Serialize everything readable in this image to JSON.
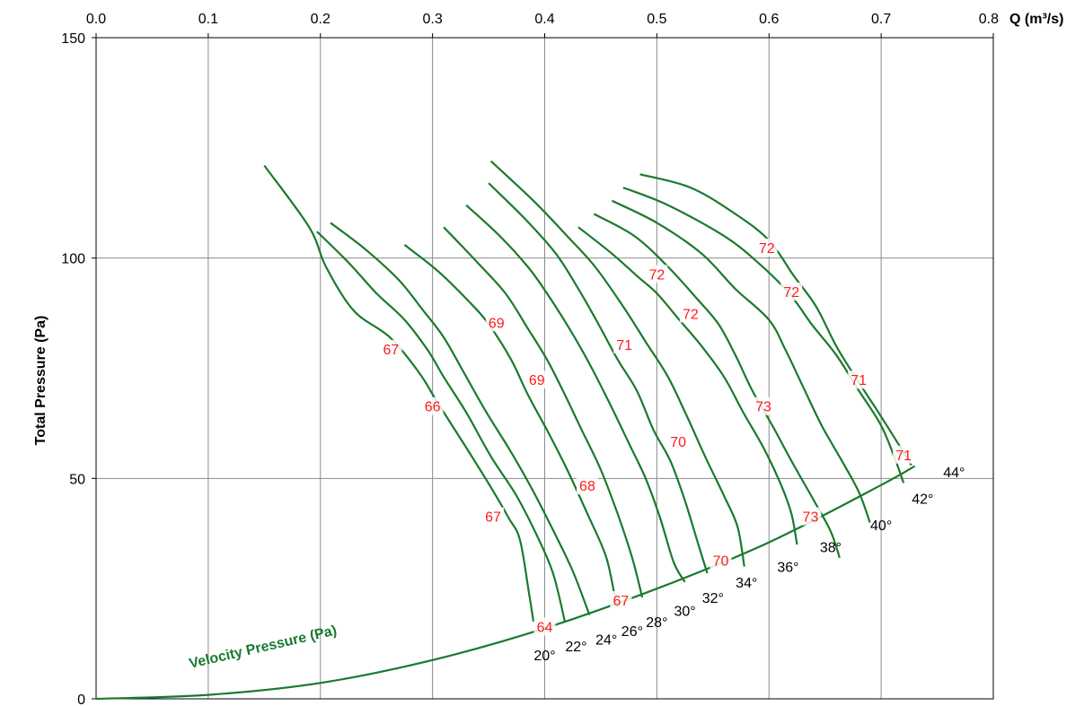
{
  "chart_data": {
    "type": "line",
    "xlabel": "Q (m³/s)",
    "ylabel": "Total Pressure (Pa)",
    "xlim": [
      0,
      0.8
    ],
    "ylim": [
      0,
      150
    ],
    "x_ticks": [
      "0.0",
      "0.1",
      "0.2",
      "0.3",
      "0.4",
      "0.5",
      "0.6",
      "0.7",
      "0.8"
    ],
    "y_ticks": [
      "0",
      "50",
      "100",
      "150"
    ],
    "grid": true,
    "x_axis_position": "top",
    "line_color": "#1a7a2e",
    "efficiency_label_color": "#ff1a1a",
    "velocity_pressure": {
      "name": "Velocity Pressure (Pa)",
      "points": [
        [
          0,
          0
        ],
        [
          0.1,
          0.9
        ],
        [
          0.2,
          3.6
        ],
        [
          0.3,
          8.8
        ],
        [
          0.4,
          16.0
        ],
        [
          0.5,
          25.0
        ],
        [
          0.6,
          35.5
        ],
        [
          0.7,
          48.5
        ],
        [
          0.73,
          52.8
        ]
      ]
    },
    "series": [
      {
        "name": "20°",
        "points": [
          [
            0.15,
            121
          ],
          [
            0.19,
            107
          ],
          [
            0.205,
            98
          ],
          [
            0.23,
            88
          ],
          [
            0.262,
            82
          ],
          [
            0.288,
            74
          ],
          [
            0.305,
            67
          ],
          [
            0.33,
            57
          ],
          [
            0.352,
            48
          ],
          [
            0.368,
            41
          ],
          [
            0.378,
            36
          ],
          [
            0.386,
            24
          ],
          [
            0.39,
            17.5
          ]
        ]
      },
      {
        "name": "22°",
        "points": [
          [
            0.197,
            106
          ],
          [
            0.225,
            99
          ],
          [
            0.25,
            92
          ],
          [
            0.275,
            86
          ],
          [
            0.296,
            79
          ],
          [
            0.31,
            73
          ],
          [
            0.33,
            65
          ],
          [
            0.352,
            55
          ],
          [
            0.375,
            46
          ],
          [
            0.395,
            36
          ],
          [
            0.408,
            28
          ],
          [
            0.418,
            17.5
          ]
        ]
      },
      {
        "name": "24°",
        "points": [
          [
            0.209,
            108
          ],
          [
            0.24,
            102
          ],
          [
            0.27,
            95
          ],
          [
            0.292,
            88
          ],
          [
            0.31,
            82
          ],
          [
            0.328,
            74
          ],
          [
            0.348,
            65
          ],
          [
            0.37,
            56
          ],
          [
            0.39,
            47
          ],
          [
            0.408,
            38
          ],
          [
            0.425,
            29
          ],
          [
            0.44,
            19
          ]
        ]
      },
      {
        "name": "26°",
        "points": [
          [
            0.275,
            103
          ],
          [
            0.305,
            97
          ],
          [
            0.333,
            90
          ],
          [
            0.35,
            85
          ],
          [
            0.37,
            77
          ],
          [
            0.385,
            69
          ],
          [
            0.402,
            61
          ],
          [
            0.42,
            52
          ],
          [
            0.438,
            42
          ],
          [
            0.455,
            32
          ],
          [
            0.464,
            21
          ]
        ]
      },
      {
        "name": "28°",
        "points": [
          [
            0.31,
            107
          ],
          [
            0.34,
            99
          ],
          [
            0.365,
            92
          ],
          [
            0.385,
            84
          ],
          [
            0.402,
            77
          ],
          [
            0.418,
            69
          ],
          [
            0.433,
            61
          ],
          [
            0.45,
            52
          ],
          [
            0.465,
            42
          ],
          [
            0.478,
            32
          ],
          [
            0.487,
            23
          ]
        ]
      },
      {
        "name": "30°",
        "points": [
          [
            0.33,
            112
          ],
          [
            0.36,
            105
          ],
          [
            0.385,
            98
          ],
          [
            0.402,
            92
          ],
          [
            0.422,
            84
          ],
          [
            0.44,
            76
          ],
          [
            0.458,
            67
          ],
          [
            0.475,
            58
          ],
          [
            0.49,
            50
          ],
          [
            0.503,
            41
          ],
          [
            0.515,
            31
          ],
          [
            0.525,
            26.5
          ]
        ]
      },
      {
        "name": "32°",
        "points": [
          [
            0.35,
            117
          ],
          [
            0.382,
            109
          ],
          [
            0.41,
            101
          ],
          [
            0.43,
            93
          ],
          [
            0.448,
            85
          ],
          [
            0.465,
            77
          ],
          [
            0.482,
            70
          ],
          [
            0.497,
            61
          ],
          [
            0.512,
            54
          ],
          [
            0.525,
            45
          ],
          [
            0.537,
            35
          ],
          [
            0.545,
            28.5
          ]
        ]
      },
      {
        "name": "34°",
        "points": [
          [
            0.352,
            122
          ],
          [
            0.39,
            113
          ],
          [
            0.42,
            105
          ],
          [
            0.445,
            98
          ],
          [
            0.47,
            89
          ],
          [
            0.49,
            81
          ],
          [
            0.51,
            73
          ],
          [
            0.527,
            64
          ],
          [
            0.543,
            55
          ],
          [
            0.56,
            46
          ],
          [
            0.572,
            39
          ],
          [
            0.578,
            30
          ]
        ]
      },
      {
        "name": "36°",
        "points": [
          [
            0.43,
            107
          ],
          [
            0.46,
            101
          ],
          [
            0.482,
            96
          ],
          [
            0.5,
            92
          ],
          [
            0.52,
            86
          ],
          [
            0.54,
            80
          ],
          [
            0.56,
            73
          ],
          [
            0.577,
            65
          ],
          [
            0.595,
            57
          ],
          [
            0.61,
            49
          ],
          [
            0.62,
            42
          ],
          [
            0.625,
            35
          ]
        ]
      },
      {
        "name": "38°",
        "points": [
          [
            0.444,
            110
          ],
          [
            0.48,
            105
          ],
          [
            0.51,
            98
          ],
          [
            0.535,
            91
          ],
          [
            0.555,
            85
          ],
          [
            0.57,
            78
          ],
          [
            0.585,
            70
          ],
          [
            0.603,
            62
          ],
          [
            0.62,
            54
          ],
          [
            0.64,
            45
          ],
          [
            0.655,
            38
          ],
          [
            0.663,
            32
          ]
        ]
      },
      {
        "name": "40°",
        "points": [
          [
            0.46,
            113
          ],
          [
            0.5,
            108
          ],
          [
            0.54,
            101
          ],
          [
            0.57,
            93
          ],
          [
            0.6,
            86
          ],
          [
            0.615,
            79
          ],
          [
            0.63,
            71
          ],
          [
            0.647,
            62
          ],
          [
            0.665,
            54
          ],
          [
            0.68,
            47
          ],
          [
            0.69,
            40
          ]
        ]
      },
      {
        "name": "42°",
        "points": [
          [
            0.47,
            116
          ],
          [
            0.51,
            112
          ],
          [
            0.56,
            105
          ],
          [
            0.59,
            99
          ],
          [
            0.618,
            92
          ],
          [
            0.638,
            85
          ],
          [
            0.66,
            78
          ],
          [
            0.68,
            70
          ],
          [
            0.7,
            62
          ],
          [
            0.713,
            54
          ],
          [
            0.72,
            49
          ]
        ]
      },
      {
        "name": "44°",
        "points": [
          [
            0.485,
            119
          ],
          [
            0.53,
            116
          ],
          [
            0.57,
            110
          ],
          [
            0.6,
            104
          ],
          [
            0.622,
            96
          ],
          [
            0.642,
            89
          ],
          [
            0.66,
            80
          ],
          [
            0.677,
            73
          ],
          [
            0.695,
            66
          ],
          [
            0.71,
            60
          ],
          [
            0.727,
            53
          ]
        ]
      }
    ],
    "efficiency_labels": [
      {
        "text": "67",
        "x": 0.263,
        "y": 79
      },
      {
        "text": "66",
        "x": 0.3,
        "y": 66
      },
      {
        "text": "67",
        "x": 0.354,
        "y": 41
      },
      {
        "text": "64",
        "x": 0.4,
        "y": 16
      },
      {
        "text": "69",
        "x": 0.357,
        "y": 85
      },
      {
        "text": "69",
        "x": 0.393,
        "y": 72
      },
      {
        "text": "68",
        "x": 0.438,
        "y": 48
      },
      {
        "text": "67",
        "x": 0.468,
        "y": 22
      },
      {
        "text": "71",
        "x": 0.471,
        "y": 80
      },
      {
        "text": "70",
        "x": 0.519,
        "y": 58
      },
      {
        "text": "70",
        "x": 0.557,
        "y": 31
      },
      {
        "text": "72",
        "x": 0.5,
        "y": 96
      },
      {
        "text": "72",
        "x": 0.53,
        "y": 87
      },
      {
        "text": "73",
        "x": 0.595,
        "y": 66
      },
      {
        "text": "73",
        "x": 0.637,
        "y": 41
      },
      {
        "text": "72",
        "x": 0.598,
        "y": 102
      },
      {
        "text": "72",
        "x": 0.62,
        "y": 92
      },
      {
        "text": "71",
        "x": 0.68,
        "y": 72
      },
      {
        "text": "71",
        "x": 0.72,
        "y": 55
      }
    ],
    "angle_labels": [
      {
        "text": "20°",
        "x": 0.4,
        "y": 10
      },
      {
        "text": "22°",
        "x": 0.428,
        "y": 12
      },
      {
        "text": "24°",
        "x": 0.455,
        "y": 13.5
      },
      {
        "text": "26°",
        "x": 0.478,
        "y": 15.5
      },
      {
        "text": "28°",
        "x": 0.5,
        "y": 17.5
      },
      {
        "text": "30°",
        "x": 0.525,
        "y": 20
      },
      {
        "text": "32°",
        "x": 0.55,
        "y": 23
      },
      {
        "text": "34°",
        "x": 0.58,
        "y": 26.5
      },
      {
        "text": "36°",
        "x": 0.617,
        "y": 30
      },
      {
        "text": "38°",
        "x": 0.655,
        "y": 34.5
      },
      {
        "text": "40°",
        "x": 0.7,
        "y": 39.5
      },
      {
        "text": "42°",
        "x": 0.737,
        "y": 45.5
      },
      {
        "text": "44°",
        "x": 0.765,
        "y": 51.5
      }
    ]
  }
}
